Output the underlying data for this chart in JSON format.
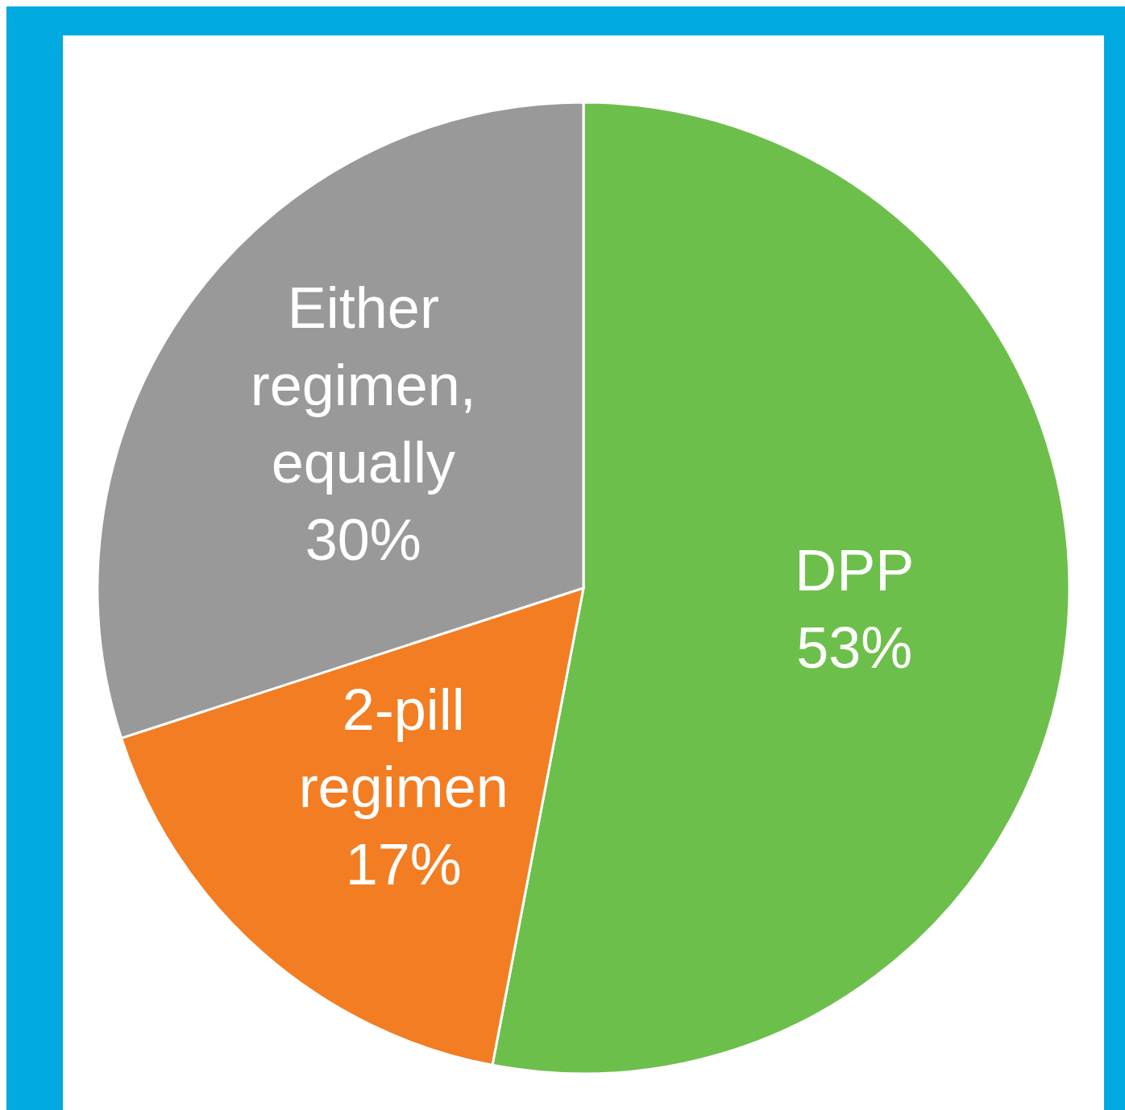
{
  "chart_data": {
    "type": "pie",
    "categories": [
      "DPP",
      "2-pill regimen",
      "Either regimen, equally"
    ],
    "values": [
      53,
      17,
      30
    ],
    "colors": [
      "#6dbf4b",
      "#f37d22",
      "#999999"
    ],
    "value_labels": [
      "53%",
      "17%",
      "30%"
    ]
  }
}
